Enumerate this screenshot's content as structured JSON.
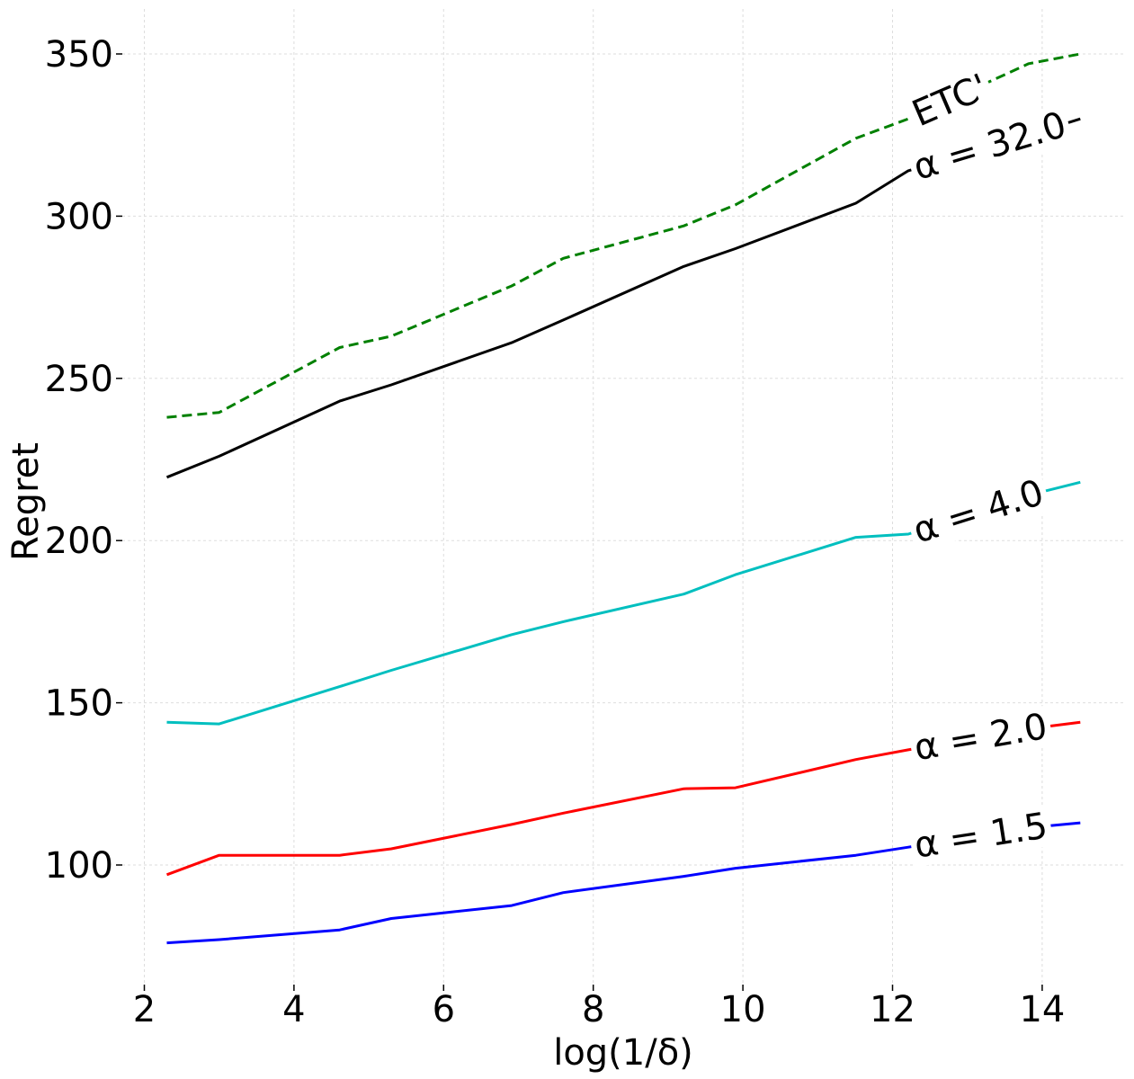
{
  "chart_data": {
    "type": "line",
    "title": "",
    "xlabel": "log(1/δ)",
    "ylabel": "Regret",
    "xlim": [
      2.0,
      15.1
    ],
    "ylim": [
      63,
      364
    ],
    "xticks": [
      2,
      4,
      6,
      8,
      10,
      12,
      14
    ],
    "yticks": [
      100,
      150,
      200,
      250,
      300,
      350
    ],
    "grid": true,
    "legend": "none (labels drawn inline on lines)",
    "series": [
      {
        "name": "ETC'",
        "color": "#008000",
        "dashed": true,
        "x": [
          2.3,
          3.0,
          4.61,
          5.3,
          6.91,
          7.6,
          9.21,
          9.9,
          11.51,
          12.21,
          13.82,
          14.51
        ],
        "y": [
          238,
          239.5,
          259.5,
          263,
          278.5,
          287,
          297,
          303.5,
          324,
          330,
          347,
          350
        ]
      },
      {
        "name": "α = 32.0",
        "color": "#000000",
        "dashed": false,
        "x": [
          2.3,
          3.0,
          4.61,
          5.3,
          6.91,
          7.6,
          9.21,
          9.9,
          11.51,
          12.21,
          13.82,
          14.51
        ],
        "y": [
          219.5,
          226,
          243,
          248,
          261,
          268,
          284.5,
          290,
          304,
          314,
          325,
          330
        ]
      },
      {
        "name": "α = 4.0",
        "color": "#00bfbf",
        "dashed": false,
        "x": [
          2.3,
          3.0,
          4.61,
          5.3,
          6.91,
          7.6,
          9.21,
          9.9,
          11.51,
          12.21,
          13.82,
          14.51
        ],
        "y": [
          144,
          143.5,
          155,
          160,
          171,
          175,
          183.5,
          189.5,
          201,
          202,
          214,
          218
        ]
      },
      {
        "name": "α = 2.0",
        "color": "#ff0000",
        "dashed": false,
        "x": [
          2.3,
          3.0,
          4.61,
          5.3,
          6.91,
          7.6,
          9.21,
          9.9,
          11.51,
          12.21,
          13.82,
          14.51
        ],
        "y": [
          97,
          103,
          103,
          105,
          112.5,
          116,
          123.5,
          123.8,
          132.5,
          135.5,
          142,
          144
        ]
      },
      {
        "name": "α = 1.5",
        "color": "#0000ff",
        "dashed": false,
        "x": [
          2.3,
          3.0,
          4.61,
          5.3,
          6.91,
          7.6,
          9.21,
          9.9,
          11.51,
          12.21,
          13.82,
          14.51
        ],
        "y": [
          76,
          77,
          80,
          83.5,
          87.5,
          91.5,
          96.5,
          99,
          103,
          105.5,
          111.5,
          113
        ]
      }
    ],
    "inline_labels": [
      {
        "text": "ETC'",
        "series": "ETC'"
      },
      {
        "text": "α = 32.0",
        "series": "α = 32.0"
      },
      {
        "text": "α = 4.0",
        "series": "α = 4.0"
      },
      {
        "text": "α = 2.0",
        "series": "α = 2.0"
      },
      {
        "text": "α = 1.5",
        "series": "α = 1.5"
      }
    ]
  }
}
